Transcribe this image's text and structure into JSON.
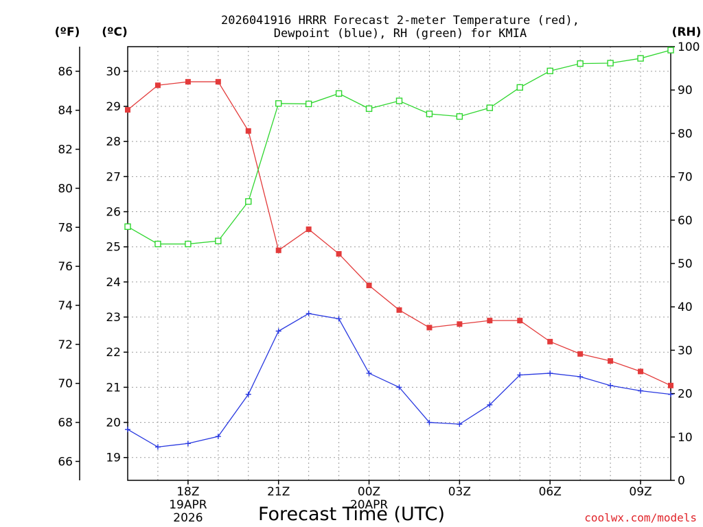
{
  "chart_data": {
    "type": "line",
    "title_lines": [
      "2026041916 HRRR Forecast 2-meter Temperature (red),",
      "Dewpoint (blue), RH (green) for KMIA"
    ],
    "xlabel": "Forecast Time (UTC)",
    "credit": "coolwx.com/models",
    "unit_labels": {
      "fahrenheit": "(ºF)",
      "celsius": "(ºC)",
      "rh": "(RH)"
    },
    "x": [
      16,
      17,
      18,
      19,
      20,
      21,
      22,
      23,
      24,
      25,
      26,
      27,
      28,
      29,
      30,
      31,
      32,
      33,
      34
    ],
    "x_range": [
      16,
      34
    ],
    "x_ticks": [
      {
        "x": 18,
        "lines": [
          "18Z",
          "19APR",
          "2026"
        ]
      },
      {
        "x": 21,
        "lines": [
          "21Z"
        ]
      },
      {
        "x": 24,
        "lines": [
          "00Z",
          "20APR"
        ]
      },
      {
        "x": 27,
        "lines": [
          "03Z"
        ]
      },
      {
        "x": 30,
        "lines": [
          "06Z"
        ]
      },
      {
        "x": 33,
        "lines": [
          "09Z"
        ]
      }
    ],
    "celsius_axis": {
      "range": [
        18.35,
        30.7
      ],
      "ticks": [
        19,
        20,
        21,
        22,
        23,
        24,
        25,
        26,
        27,
        28,
        29,
        30
      ]
    },
    "fahrenheit_axis": {
      "ticks": [
        66,
        68,
        70,
        72,
        74,
        76,
        78,
        80,
        82,
        84,
        86
      ]
    },
    "rh_axis": {
      "range": [
        0,
        100
      ],
      "ticks": [
        0,
        10,
        20,
        30,
        40,
        50,
        60,
        70,
        80,
        90,
        100
      ]
    },
    "grid": true,
    "series": [
      {
        "name": "Temperature",
        "axis": "celsius",
        "color": "#e33b3b",
        "marker": "filled-square",
        "values": [
          28.9,
          29.6,
          29.7,
          29.7,
          28.3,
          24.9,
          25.5,
          24.8,
          23.9,
          23.2,
          22.7,
          22.8,
          22.9,
          22.9,
          22.3,
          21.95,
          21.75,
          21.45,
          21.05
        ]
      },
      {
        "name": "Dewpoint",
        "axis": "celsius",
        "color": "#2838e0",
        "marker": "plus",
        "values": [
          19.8,
          19.3,
          19.4,
          19.6,
          20.8,
          22.6,
          23.1,
          22.95,
          21.4,
          21.0,
          20.0,
          19.95,
          20.5,
          21.35,
          21.4,
          21.3,
          21.05,
          20.9,
          20.8
        ]
      },
      {
        "name": "RH",
        "axis": "rh",
        "color": "#2fd62f",
        "marker": "open-square",
        "values": [
          58.5,
          54.5,
          54.5,
          55.2,
          64.3,
          86.9,
          86.8,
          89.2,
          85.7,
          87.5,
          84.5,
          83.9,
          85.9,
          90.6,
          94.4,
          96.1,
          96.2,
          97.3,
          99.2
        ]
      }
    ]
  }
}
